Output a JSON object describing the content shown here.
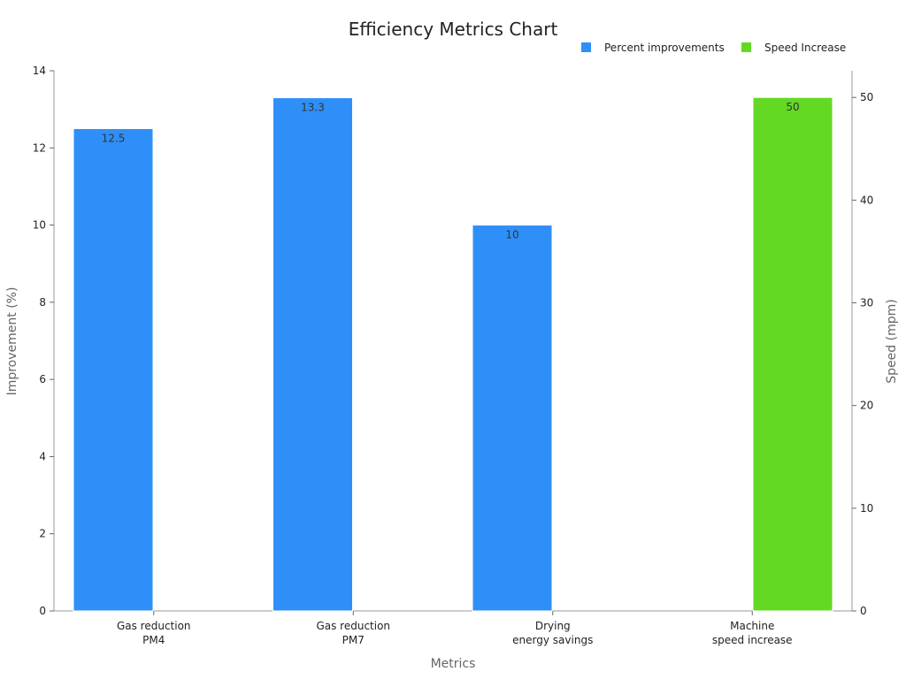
{
  "chart_data": {
    "type": "bar",
    "title": "Efficiency Metrics Chart",
    "xlabel": "Metrics",
    "ylabel": "Improvement (%)",
    "y2label": "Speed (mpm)",
    "categories": [
      [
        "Gas reduction",
        "PM4"
      ],
      [
        "Gas reduction",
        "PM7"
      ],
      [
        "Drying",
        "energy savings"
      ],
      [
        "Machine",
        "speed increase"
      ]
    ],
    "series": [
      {
        "name": "Percent improvements",
        "axis": "left",
        "color": "#2f8ff8",
        "values": [
          12.5,
          13.3,
          10,
          null
        ]
      },
      {
        "name": "Speed Increase",
        "axis": "right",
        "color": "#63d924",
        "values": [
          null,
          null,
          null,
          50
        ]
      }
    ],
    "ylim": [
      0,
      14
    ],
    "yticks": [
      0,
      2,
      4,
      6,
      8,
      10,
      12,
      14
    ],
    "y2lim": [
      0,
      52.6
    ],
    "y2ticks": [
      0,
      10,
      20,
      30,
      40,
      50
    ],
    "legend_position": "top-right",
    "grid": false
  }
}
